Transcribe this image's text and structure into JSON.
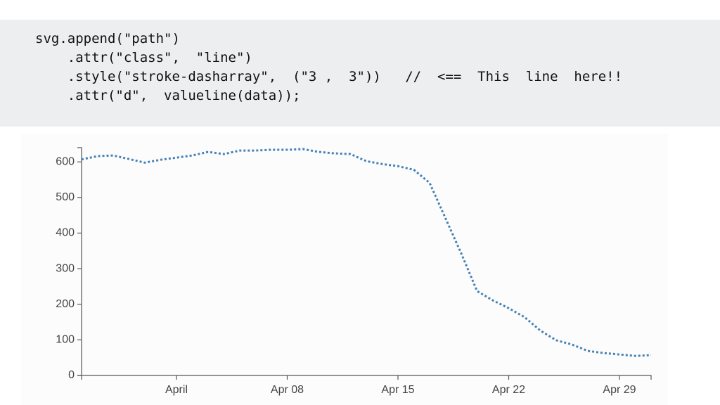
{
  "code": [
    "svg.append(\"path\")",
    "    .attr(\"class\",  \"line\")",
    "    .style(\"stroke-dasharray\",  (\"3 ,  3\"))   //  <==  This  line  here!!",
    "    .attr(\"d\",  valueline(data));"
  ],
  "chart_data": {
    "type": "line",
    "x": [
      "03-26",
      "03-27",
      "03-28",
      "03-29",
      "03-30",
      "03-31",
      "04-01",
      "04-02",
      "04-03",
      "04-04",
      "04-05",
      "04-06",
      "04-07",
      "04-08",
      "04-09",
      "04-10",
      "04-11",
      "04-12",
      "04-13",
      "04-14",
      "04-15",
      "04-16",
      "04-17",
      "04-18",
      "04-19",
      "04-20",
      "04-21",
      "04-22",
      "04-23",
      "04-24",
      "04-25",
      "04-26",
      "04-27",
      "04-28",
      "04-29",
      "04-30",
      "05-01"
    ],
    "values": [
      607,
      616,
      618,
      608,
      598,
      606,
      612,
      618,
      628,
      622,
      632,
      632,
      634,
      634,
      636,
      628,
      624,
      622,
      602,
      594,
      588,
      578,
      541,
      442,
      343,
      237,
      211,
      189,
      164,
      126,
      99,
      87,
      69,
      63,
      59,
      55,
      57
    ],
    "color": "#4682b4",
    "dasharray": "3,3",
    "xlim": [
      "03-26",
      "05-01"
    ],
    "xticks": [
      {
        "value": "04-01",
        "label": "April"
      },
      {
        "value": "04-08",
        "label": "Apr 08"
      },
      {
        "value": "04-15",
        "label": "Apr 15"
      },
      {
        "value": "04-22",
        "label": "Apr 22"
      },
      {
        "value": "04-29",
        "label": "Apr 29"
      }
    ],
    "ylim": [
      0,
      640
    ],
    "yticks": [
      0,
      100,
      200,
      300,
      400,
      500,
      600
    ],
    "grid": false
  }
}
